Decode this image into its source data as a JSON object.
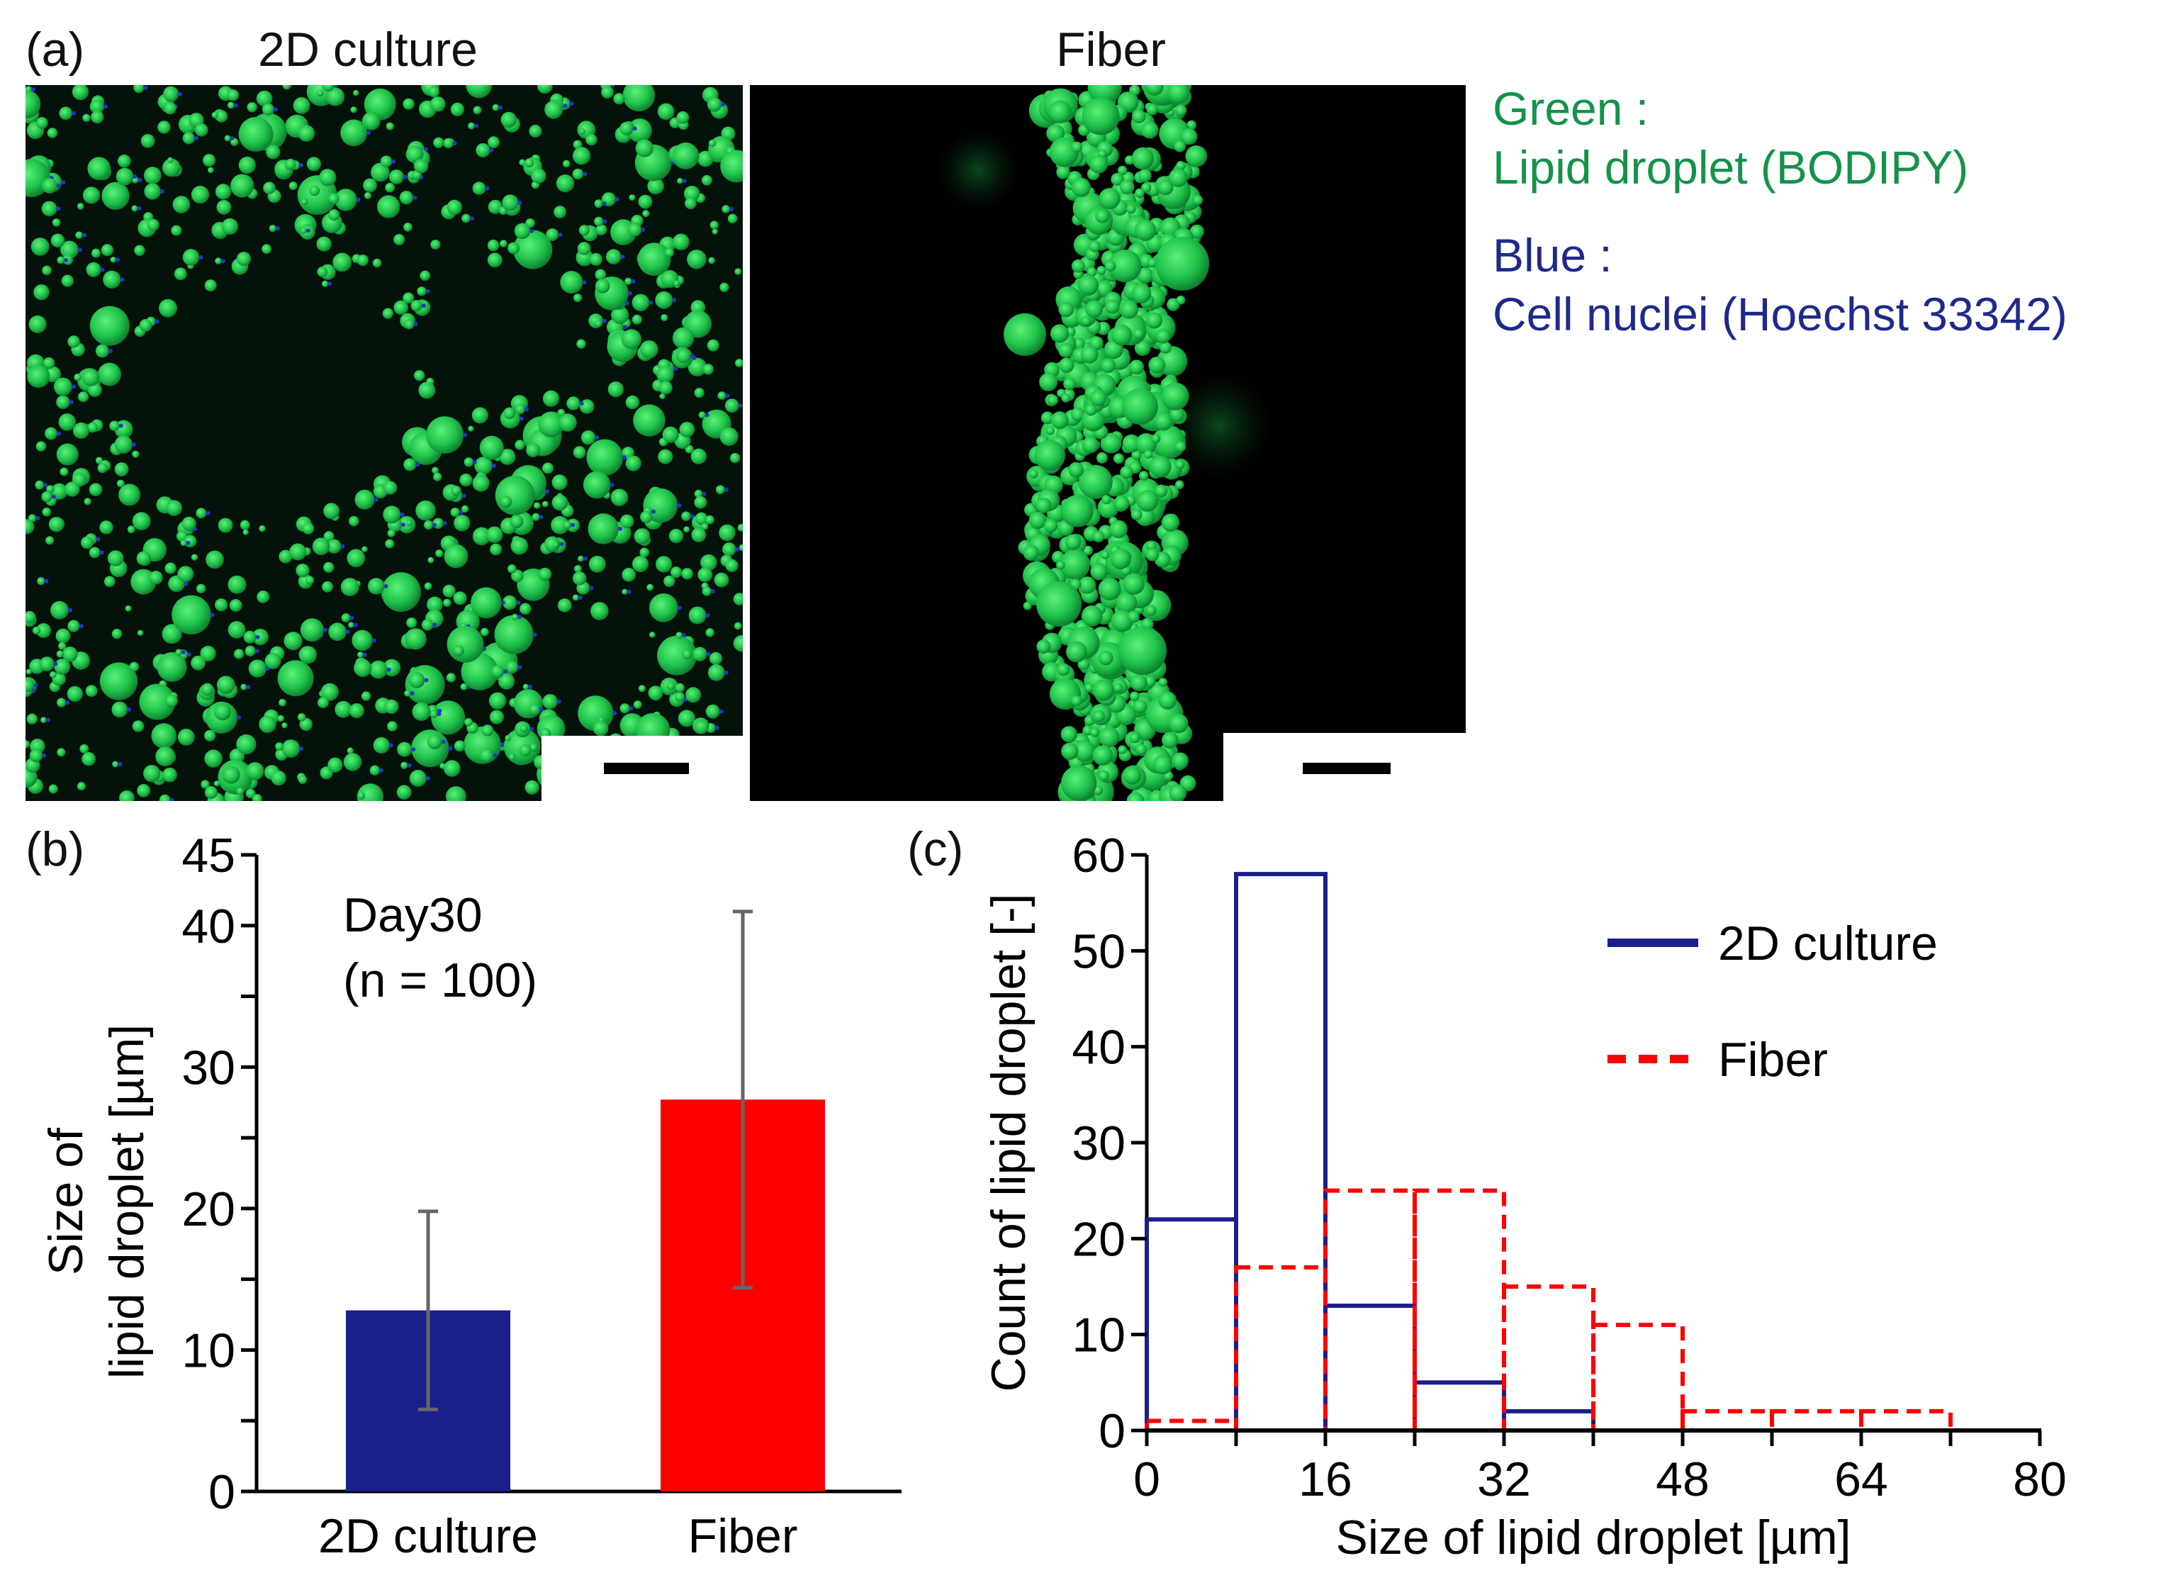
{
  "panel_a": {
    "label": "(a)",
    "images": [
      {
        "title": "2D culture"
      },
      {
        "title": "Fiber"
      }
    ],
    "stain_legend": {
      "green_title": "Green :",
      "green_text": "Lipid droplet (BODIPY)",
      "blue_title": "Blue :",
      "blue_text": "Cell nuclei (Hoechst 33342)",
      "green_color": "#13934a",
      "blue_color": "#1e2a8a"
    }
  },
  "panel_b": {
    "label": "(b)"
  },
  "panel_c": {
    "label": "(c)"
  },
  "chart_data": [
    {
      "id": "b",
      "type": "bar",
      "categories": [
        "2D culture",
        "Fiber"
      ],
      "values": [
        12.8,
        27.7
      ],
      "error": [
        7.0,
        13.3
      ],
      "colors": [
        "#1a1f8c",
        "#ff0000"
      ],
      "ylabel_line1": "Size of",
      "ylabel_line2": "lipid droplet [µm]",
      "ylim": [
        0,
        45
      ],
      "yticks": [
        0,
        10,
        20,
        30,
        40,
        45
      ],
      "annotation_line1": "Day30",
      "annotation_line2": "(n = 100)"
    },
    {
      "id": "c",
      "type": "histogram",
      "bin_edges": [
        0,
        8,
        16,
        24,
        32,
        40,
        48,
        56,
        64,
        72,
        80
      ],
      "series": [
        {
          "name": "2D culture",
          "values": [
            22,
            58,
            13,
            5,
            2,
            0,
            0,
            0,
            0,
            0
          ],
          "color": "#1a1f8c",
          "style": "solid"
        },
        {
          "name": "Fiber",
          "values": [
            1,
            17,
            25,
            25,
            15,
            11,
            2,
            2,
            2,
            0
          ],
          "color": "#ff0000",
          "style": "dashed"
        }
      ],
      "xlabel": "Size of lipid droplet [µm]",
      "ylabel": "Count of lipid droplet [-]",
      "xlim": [
        0,
        80
      ],
      "ylim": [
        0,
        60
      ],
      "xticks": [
        0,
        16,
        32,
        48,
        64,
        80
      ],
      "yticks": [
        0,
        10,
        20,
        30,
        40,
        50,
        60
      ],
      "legend_position": "top-right"
    }
  ]
}
